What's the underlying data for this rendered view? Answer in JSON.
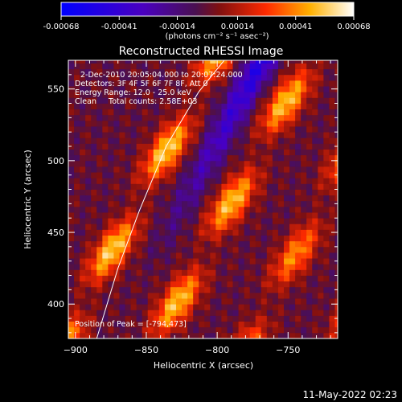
{
  "chart_data": {
    "type": "heatmap",
    "title": "Reconstructed RHESSI Image",
    "xlabel": "Heliocentric X (arcsec)",
    "ylabel": "Heliocentric Y (arcsec)",
    "xlim": [
      -905,
      -715
    ],
    "ylim": [
      376,
      570
    ],
    "x_ticks": [
      -900,
      -850,
      -800,
      -750
    ],
    "y_ticks": [
      400,
      450,
      500,
      550
    ],
    "colorbar": {
      "ticks": [
        -0.00068,
        -0.00041,
        -0.00014,
        0.00014,
        0.00041,
        0.00068
      ],
      "tick_labels": [
        "-0.00068",
        "-0.00041",
        "-0.00014",
        "0.00014",
        "0.00041",
        "0.00068"
      ],
      "units_label": "(photons cm⁻² s⁻¹ asec⁻²)",
      "range": [
        -0.00068,
        0.00068
      ]
    },
    "annotations": [
      "2-Dec-2010 20:05:04.000 to 20:07:24.000",
      "Detectors: 3F 4F 5F 6F 7F 8F, Att 0",
      "Energy Range: 12.0 - 25.0 keV",
      "Clean     Total counts: 2.58E+03"
    ],
    "peak_label": "Position of Peak = [-794,473]",
    "peak": {
      "x": -794,
      "y": 473
    },
    "limb": [
      {
        "x": -885,
        "y": 376
      },
      {
        "x": -870,
        "y": 425
      },
      {
        "x": -855,
        "y": 465
      },
      {
        "x": -836,
        "y": 510
      },
      {
        "x": -813,
        "y": 548
      },
      {
        "x": -795,
        "y": 570
      }
    ],
    "grid": false,
    "pixel_size_arcsec": 4
  },
  "footer": {
    "timestamp": "11-May-2022 02:23"
  }
}
